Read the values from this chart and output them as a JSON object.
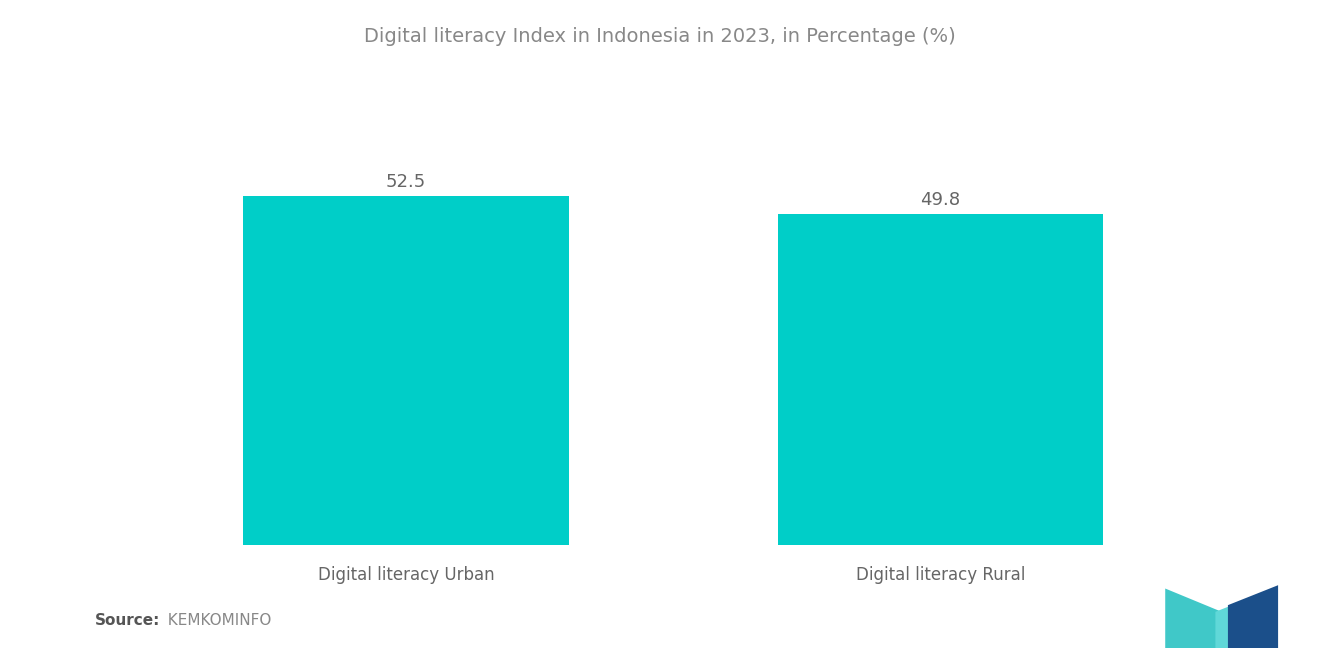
{
  "title": "Digital literacy Index in Indonesia in 2023, in Percentage (%)",
  "categories": [
    "Digital literacy Urban",
    "Digital literacy Rural"
  ],
  "values": [
    52.5,
    49.8
  ],
  "bar_color": "#00CEC8",
  "bar_width": 0.28,
  "value_fontsize": 13,
  "label_fontsize": 12,
  "title_fontsize": 14,
  "background_color": "#ffffff",
  "ylim": [
    0,
    70
  ],
  "source_bold": "Source:",
  "source_normal": "  KEMKOMINFO",
  "source_fontsize": 11,
  "value_color": "#666666",
  "label_color": "#666666",
  "title_color": "#888888",
  "logo_teal": "#40C8C8",
  "logo_blue": "#1B4F8A",
  "logo_teal2": "#60D8D8"
}
